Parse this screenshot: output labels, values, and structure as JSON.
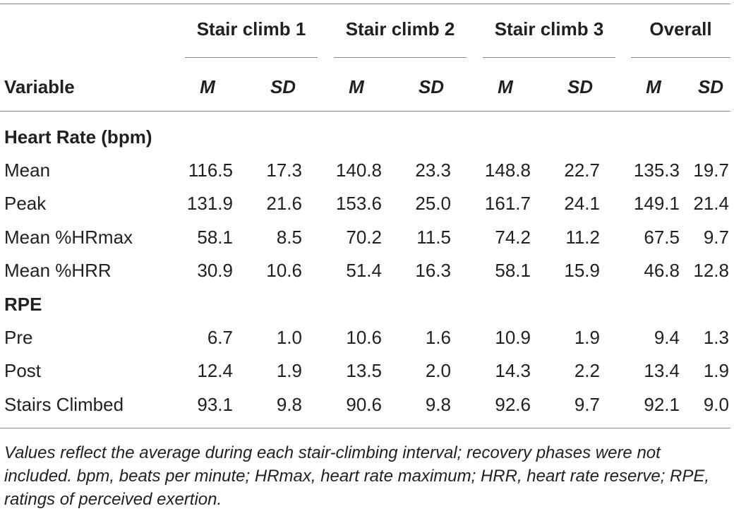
{
  "table": {
    "groups": [
      "Stair climb 1",
      "Stair climb 2",
      "Stair climb 3",
      "Overall"
    ],
    "variable_header": "Variable",
    "m_label": "M",
    "sd_label": "SD",
    "sections": [
      {
        "heading": "Heart Rate (bpm)",
        "rows": [
          {
            "label": "Mean",
            "values": [
              "116.5",
              "17.3",
              "140.8",
              "23.3",
              "148.8",
              "22.7",
              "135.3",
              "19.7"
            ]
          },
          {
            "label": "Peak",
            "values": [
              "131.9",
              "21.6",
              "153.6",
              "25.0",
              "161.7",
              "24.1",
              "149.1",
              "21.4"
            ]
          },
          {
            "label": "Mean %HRmax",
            "values": [
              "58.1",
              "8.5",
              "70.2",
              "11.5",
              "74.2",
              "11.2",
              "67.5",
              "9.7"
            ]
          },
          {
            "label": "Mean %HRR",
            "values": [
              "30.9",
              "10.6",
              "51.4",
              "16.3",
              "58.1",
              "15.9",
              "46.8",
              "12.8"
            ]
          }
        ]
      },
      {
        "heading": "RPE",
        "rows": [
          {
            "label": "Pre",
            "values": [
              "6.7",
              "1.0",
              "10.6",
              "1.6",
              "10.9",
              "1.9",
              "9.4",
              "1.3"
            ]
          },
          {
            "label": "Post",
            "values": [
              "12.4",
              "1.9",
              "13.5",
              "2.0",
              "14.3",
              "2.2",
              "13.4",
              "1.9"
            ]
          },
          {
            "label": "Stairs Climbed",
            "values": [
              "93.1",
              "9.8",
              "90.6",
              "9.8",
              "92.6",
              "9.7",
              "92.1",
              "9.0"
            ]
          }
        ]
      }
    ],
    "footnote": "Values reflect the average during each stair-climbing interval; recovery phases were not included. bpm, beats per minute; HRmax, heart rate maximum; HRR, heart rate reserve; RPE, ratings of perceived exertion."
  }
}
